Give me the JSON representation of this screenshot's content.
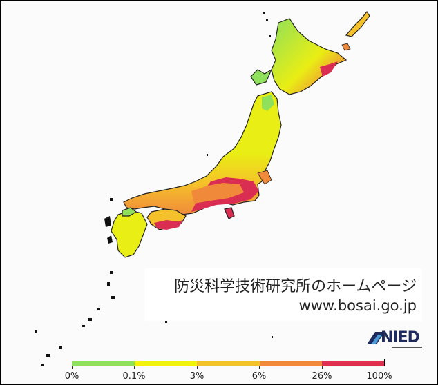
{
  "info": {
    "title": "防災科学技術研究所のホームページ",
    "url": "www.bosai.go.jp"
  },
  "logo": {
    "text": "NIED"
  },
  "legend": {
    "labels": [
      "0%",
      "0.1%",
      "3%",
      "6%",
      "26%",
      "100%"
    ],
    "colors": [
      "#8fe05a",
      "#f2f20a",
      "#f5c12a",
      "#f08a3a",
      "#e03050"
    ]
  },
  "map": {
    "land_colors": {
      "low": "#8fe05a",
      "mid": "#e9ee14",
      "midhigh": "#f5c12a",
      "high": "#f08a3a",
      "very_high": "#d92e52"
    }
  }
}
